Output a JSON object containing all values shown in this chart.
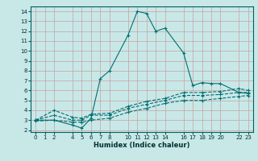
{
  "title": "",
  "xlabel": "Humidex (Indice chaleur)",
  "bg_color": "#c8e8e8",
  "grid_color": "#c8a0a0",
  "line_color": "#007070",
  "xlim": [
    -0.5,
    23.5
  ],
  "ylim": [
    1.8,
    14.5
  ],
  "yticks": [
    2,
    3,
    4,
    5,
    6,
    7,
    8,
    9,
    10,
    11,
    12,
    13,
    14
  ],
  "xticks": [
    0,
    1,
    2,
    4,
    5,
    6,
    7,
    8,
    10,
    11,
    12,
    13,
    14,
    16,
    17,
    18,
    19,
    20,
    22,
    23
  ],
  "series": [
    {
      "x": [
        0,
        2,
        4,
        5,
        6,
        7,
        8,
        10,
        11,
        12,
        13,
        14,
        16,
        17,
        18,
        19,
        20,
        22,
        23
      ],
      "y": [
        3.0,
        3.0,
        2.5,
        2.2,
        3.2,
        7.2,
        8.0,
        11.6,
        14.0,
        13.8,
        12.0,
        12.3,
        9.8,
        6.5,
        6.8,
        6.7,
        6.7,
        5.8,
        5.7
      ],
      "linestyle": "-"
    },
    {
      "x": [
        0,
        2,
        4,
        5,
        6,
        8,
        10,
        12,
        14,
        16,
        18,
        20,
        22,
        23
      ],
      "y": [
        3.0,
        4.0,
        3.3,
        3.2,
        3.6,
        3.7,
        4.4,
        4.9,
        5.2,
        5.8,
        5.8,
        5.9,
        6.2,
        6.0
      ],
      "linestyle": "--"
    },
    {
      "x": [
        0,
        2,
        4,
        5,
        6,
        8,
        10,
        12,
        14,
        16,
        18,
        20,
        22,
        23
      ],
      "y": [
        3.0,
        3.5,
        3.0,
        3.0,
        3.5,
        3.5,
        4.2,
        4.6,
        5.0,
        5.5,
        5.5,
        5.6,
        5.8,
        5.8
      ],
      "linestyle": "--"
    },
    {
      "x": [
        0,
        2,
        4,
        5,
        6,
        8,
        10,
        12,
        14,
        16,
        18,
        20,
        22,
        23
      ],
      "y": [
        2.9,
        3.0,
        2.8,
        2.8,
        3.0,
        3.2,
        3.8,
        4.2,
        4.7,
        5.0,
        5.0,
        5.2,
        5.4,
        5.5
      ],
      "linestyle": "--"
    }
  ]
}
